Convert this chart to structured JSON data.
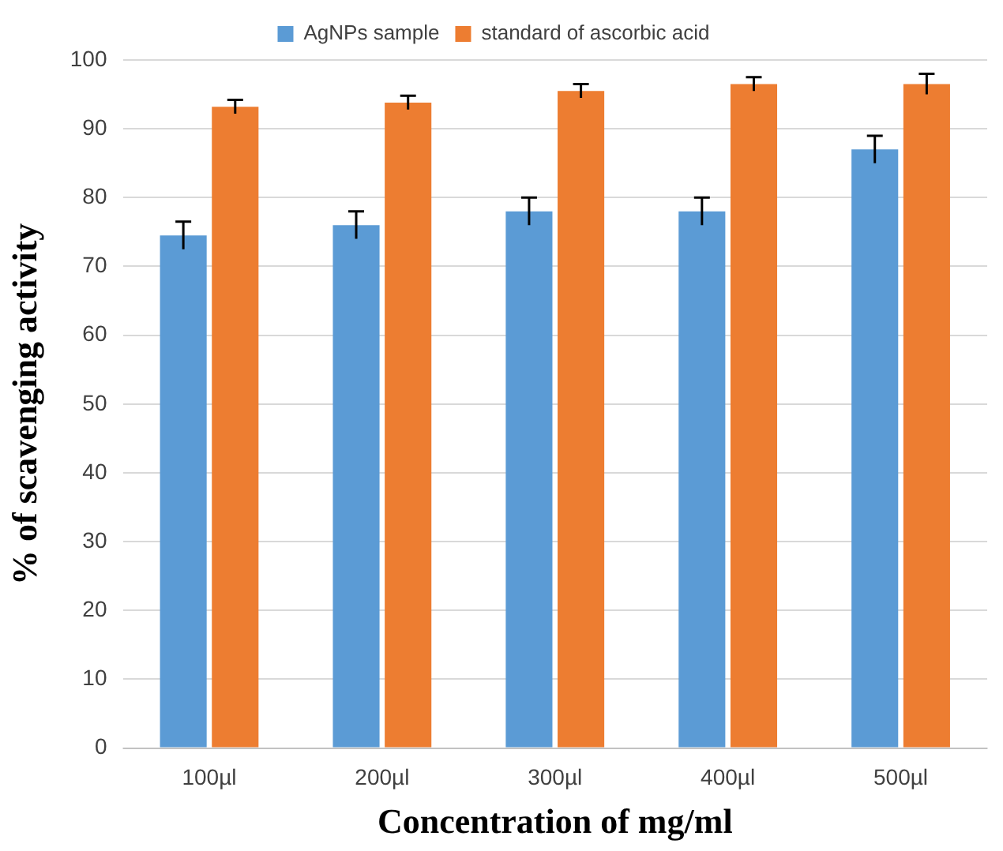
{
  "chart_data": {
    "type": "bar",
    "xlabel": "Concentration of mg/ml",
    "ylabel": "% of scavenging activity",
    "categories": [
      "100µl",
      "200µl",
      "300µl",
      "400µl",
      "500µl"
    ],
    "series": [
      {
        "name": "AgNPs sample",
        "color": "#5b9bd5",
        "values": [
          74.5,
          76,
          78,
          78,
          87
        ],
        "errors": [
          2,
          2,
          2,
          2,
          2
        ]
      },
      {
        "name": "standard of ascorbic acid",
        "color": "#ed7d31",
        "values": [
          93.2,
          93.8,
          95.5,
          96.5,
          96.5
        ],
        "errors": [
          1,
          1,
          1,
          1,
          1.5
        ]
      }
    ],
    "ylim": [
      0,
      100
    ],
    "yticks": [
      0,
      10,
      20,
      30,
      40,
      50,
      60,
      70,
      80,
      90,
      100
    ],
    "grid": "y",
    "legend": "top"
  }
}
